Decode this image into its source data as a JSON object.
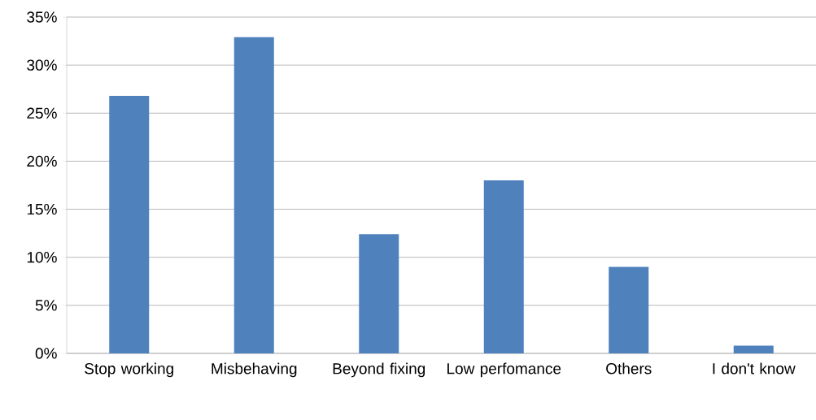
{
  "chart_data": {
    "type": "bar",
    "categories": [
      "Stop working",
      "Misbehaving",
      "Beyond fixing",
      "Low perfomance",
      "Others",
      "I don't know"
    ],
    "values": [
      26.8,
      32.9,
      12.4,
      18.0,
      9.0,
      0.8
    ],
    "color": "#4f81bd",
    "ylim": [
      0,
      35
    ],
    "yticks": [
      {
        "value": 0,
        "label": "0%"
      },
      {
        "value": 5,
        "label": "5%"
      },
      {
        "value": 10,
        "label": "10%"
      },
      {
        "value": 15,
        "label": "15%"
      },
      {
        "value": 20,
        "label": "20%"
      },
      {
        "value": 25,
        "label": "25%"
      },
      {
        "value": 30,
        "label": "30%"
      },
      {
        "value": 35,
        "label": "35%"
      }
    ],
    "grid": "y"
  }
}
